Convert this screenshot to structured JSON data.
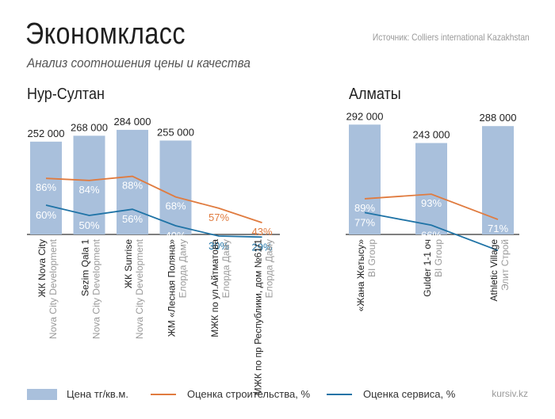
{
  "header": {
    "title": "Экономкласс",
    "subtitle": "Анализ соотношения цены и качества",
    "source": "Источник: Colliers international Kazakhstan"
  },
  "colors": {
    "bar": "#a9c0dc",
    "construction": "#e07b3f",
    "service": "#1f73a6"
  },
  "chart_data": [
    {
      "type": "bar",
      "title": "Нур-Султан",
      "categories": [
        {
          "name": "ЖК Nova City",
          "developer": "Nova City Development"
        },
        {
          "name": "Sezim Qala 1",
          "developer": "Nova City Development"
        },
        {
          "name": "ЖК Sunrise",
          "developer": "Nova City Development"
        },
        {
          "name": "ЖМ «Лесная Поляна»",
          "developer": "Елорда Даму"
        },
        {
          "name": "МЖК по ул.Айтматова",
          "developer": "Елорда Даму"
        },
        {
          "name": "МЖК по пр Республики, дом №61/1",
          "developer": "Елорда Даму"
        }
      ],
      "series": [
        {
          "name": "Цена тг/кв.м.",
          "values": [
            252000,
            268000,
            284000,
            255000,
            null,
            null
          ],
          "labels": [
            "252 000",
            "268 000",
            "284 000",
            "255 000",
            "",
            ""
          ]
        },
        {
          "name": "Оценка строительства, %",
          "values": [
            86,
            84,
            88,
            68,
            57,
            43
          ],
          "labels": [
            "86%",
            "84%",
            "88%",
            "68%",
            "57%",
            "43%"
          ]
        },
        {
          "name": "Оценка сервиса, %",
          "values": [
            60,
            50,
            56,
            40,
            30,
            29
          ],
          "labels": [
            "60%",
            "50%",
            "56%",
            "40%",
            "30%",
            "29%"
          ]
        }
      ]
    },
    {
      "type": "bar",
      "title": "Алматы",
      "categories": [
        {
          "name": "«Жана Жетысу»",
          "developer": "BI Group"
        },
        {
          "name": "Gulder 1-1 оч",
          "developer": "BI Group"
        },
        {
          "name": "Athletic Village",
          "developer": "Элит Строй"
        }
      ],
      "series": [
        {
          "name": "Цена тг/кв.м.",
          "values": [
            292000,
            243000,
            288000
          ],
          "labels": [
            "292 000",
            "243 000",
            "288 000"
          ]
        },
        {
          "name": "Оценка строительства, %",
          "values": [
            89,
            93,
            71
          ],
          "labels": [
            "89%",
            "93%",
            "71%"
          ]
        },
        {
          "name": "Оценка сервиса, %",
          "values": [
            77,
            66,
            44
          ],
          "labels": [
            "77%",
            "66%",
            "44%"
          ]
        }
      ]
    }
  ],
  "legend": {
    "price": "Цена тг/кв.м.",
    "construction": "Оценка строительства, %",
    "service": "Оценка сервиса, %"
  },
  "footer": {
    "site": "kursiv.kz"
  }
}
